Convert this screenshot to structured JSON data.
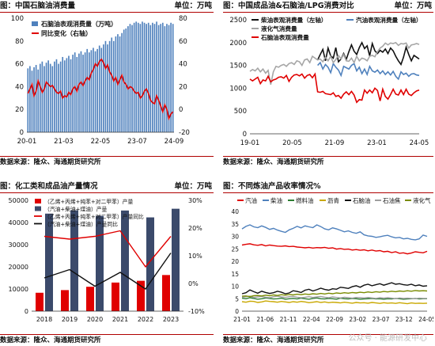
{
  "colors": {
    "title_rule": "#b00000",
    "bar_blue": "#4f81bd",
    "red": "#e00000",
    "black": "#111111",
    "gray": "#a6a6a6",
    "navy": "#3b4a6b",
    "yield_blue": "#4f81bd",
    "yield_red": "#e00000",
    "yield_green": "#2e7d32",
    "yield_yellow": "#c9a800",
    "yield_black": "#111111",
    "yield_gray": "#9e9e9e",
    "yield_olive": "#7a8b00"
  },
  "panels": [
    {
      "title": "图：中国石脑油消费量",
      "unit": "单位：万吨",
      "source": "数据来源：隆众、海通期货研究所"
    },
    {
      "title": "图：中国成品油&石脑油/LPG消费对比",
      "unit": "单位：万吨",
      "source": "数据来源：隆众、海通期货研究所"
    },
    {
      "title": "图：化工类和成品油产量情况",
      "unit": "单位：万吨",
      "source": "数据来源：隆众、海通期货研究所"
    },
    {
      "title": "图：不同炼油产品收率情况%",
      "unit": "",
      "source": "数据来源：隆众、海通期货研究所"
    }
  ],
  "watermark": "公众号 · 能源研发中心",
  "chart_data": [
    {
      "type": "bar",
      "title": "中国石脑油消费量",
      "x_ticks": [
        "20-01",
        "21-03",
        "22-05",
        "23-07",
        "24-09"
      ],
      "y_left": {
        "range": [
          0,
          100
        ],
        "ticks": [
          "0",
          "20",
          "40",
          "60",
          "80",
          "100"
        ]
      },
      "y_right": {
        "range": [
          -20,
          80
        ],
        "ticks": [
          "-20",
          "0",
          "20",
          "40",
          "60",
          "80"
        ]
      },
      "series": [
        {
          "name": "石脑油表观消费量（万吨）",
          "kind": "bar",
          "axis": "left",
          "color": "#4f81bd",
          "values": [
            56,
            58,
            54,
            57,
            59,
            55,
            60,
            62,
            58,
            61,
            63,
            60,
            58,
            62,
            64,
            60,
            62,
            66,
            63,
            65,
            67,
            64,
            68,
            70,
            66,
            69,
            71,
            68,
            70,
            73,
            70,
            72,
            74,
            71,
            73,
            76,
            74,
            77,
            80,
            77,
            80,
            83,
            80,
            84,
            86,
            84,
            87,
            90,
            91,
            93,
            95,
            94,
            96,
            97,
            96,
            95,
            97,
            96,
            95,
            96,
            94,
            96,
            95,
            97,
            94,
            95,
            96,
            93,
            95,
            94,
            96,
            95
          ]
        },
        {
          "name": "同比变化（右轴）",
          "kind": "line",
          "axis": "right",
          "color": "#e00000",
          "values": [
            14,
            18,
            22,
            12,
            16,
            25,
            20,
            15,
            18,
            24,
            22,
            20,
            21,
            18,
            15,
            14,
            16,
            10,
            12,
            11,
            15,
            13,
            18,
            20,
            16,
            22,
            24,
            21,
            25,
            28,
            26,
            32,
            35,
            40,
            38,
            42,
            44,
            41,
            36,
            39,
            33,
            30,
            25,
            28,
            22,
            26,
            30,
            24,
            22,
            18,
            20,
            19,
            16,
            14,
            15,
            10,
            12,
            16,
            18,
            14,
            8,
            6,
            5,
            12,
            8,
            3,
            -2,
            4,
            0,
            -8,
            -4,
            -2
          ]
        }
      ]
    },
    {
      "type": "line",
      "title": "中国成品油&石脑油/LPG消费对比",
      "x_ticks": [
        "19-01",
        "20-05",
        "21-09",
        "23-01",
        "24-05"
      ],
      "y_left": {
        "range": [
          0,
          2500
        ],
        "ticks": [
          "0",
          "500",
          "1000",
          "1500",
          "2000",
          "2500"
        ]
      },
      "series": [
        {
          "name": "柴油表观消费量（左轴）",
          "color": "#111111",
          "start_index": 26,
          "values": [
            1620,
            1740,
            1850,
            1600,
            1880,
            1710,
            1660,
            1890,
            1580,
            1640,
            1760,
            1630,
            1800,
            1950,
            1810,
            1740,
            1890,
            2000,
            1870,
            1930,
            1710,
            1980,
            1820,
            1760,
            1830,
            1790,
            1860,
            1760,
            1880,
            1820,
            1700,
            1600,
            1520,
            1680,
            1900,
            1740,
            1600,
            1720,
            1680,
            1640
          ]
        },
        {
          "name": "汽油表观消费量（左轴）",
          "color": "#4f81bd",
          "start_index": 26,
          "values": [
            1500,
            1560,
            1420,
            1520,
            1460,
            1340,
            1540,
            1460,
            1400,
            1280,
            1480,
            1450,
            1420,
            1500,
            1540,
            1380,
            1460,
            1320,
            1420,
            1300,
            1480,
            1380,
            1350,
            1400,
            1320,
            1380,
            1300,
            1360,
            1290,
            1370,
            1260,
            1200,
            1360,
            1300,
            1330,
            1260,
            1310,
            1320,
            1290,
            1280
          ]
        },
        {
          "name": "液化气消费量",
          "color": "#a6a6a6",
          "start_index": 0,
          "values": [
            1370,
            1410,
            1380,
            1440,
            1360,
            1420,
            1330,
            1390,
            1080,
            1360,
            1480,
            1460,
            1500,
            1520,
            1480,
            1540,
            1560,
            1520,
            1600,
            1580,
            1500,
            1620,
            1640,
            1560,
            1700,
            1660,
            1620,
            1640,
            1580,
            1680,
            1600,
            1700,
            1560,
            1630,
            1720,
            1640,
            1740,
            1600,
            1590,
            1660,
            1560,
            1700,
            1600,
            1660,
            1640,
            1600,
            1700,
            1720,
            1690,
            1800,
            1880,
            1920,
            1990,
            1950,
            1990,
            1980,
            2000,
            1940,
            1980,
            1970,
            1990,
            1880,
            1950,
            1960,
            1980,
            1960
          ]
        },
        {
          "name": "石脑油表观消费量",
          "color": "#e00000",
          "start_index": 0,
          "values": [
            1200,
            1160,
            1200,
            1240,
            1100,
            1180,
            1160,
            1260,
            1140,
            1180,
            1200,
            1240,
            1250,
            1220,
            1280,
            1150,
            1240,
            1290,
            1300,
            1270,
            1310,
            1220,
            1280,
            1300,
            1230,
            1310,
            920,
            910,
            930,
            880,
            870,
            860,
            900,
            820,
            840,
            780,
            870,
            920,
            860,
            930,
            850,
            690,
            750,
            740,
            960,
            890,
            960,
            900,
            1000,
            950,
            720,
            980,
            820,
            760,
            860,
            980,
            870,
            850,
            960,
            860,
            980,
            870,
            840,
            900,
            940,
            960
          ]
        }
      ]
    },
    {
      "type": "bar",
      "title": "化工类和成品油产量情况",
      "categories": [
        "2018",
        "2019",
        "2020",
        "2021",
        "2022",
        "2023"
      ],
      "y_left": {
        "range": [
          0,
          50000
        ],
        "ticks": [
          "0",
          "10000",
          "20000",
          "30000",
          "40000",
          "50000"
        ]
      },
      "y_right": {
        "range": [
          -10,
          30
        ],
        "ticks": [
          "-10%",
          "0%",
          "10%",
          "20%",
          "30%"
        ]
      },
      "series": [
        {
          "name": "（乙烯+丙烯+纯苯+对二甲苯）产量",
          "kind": "bar",
          "axis": "left",
          "color": "#e00000",
          "values": [
            8300,
            9500,
            11000,
            12900,
            13700,
            16300
          ]
        },
        {
          "name": "（汽油+柴油+煤油）产量",
          "kind": "bar",
          "axis": "left",
          "color": "#3b4a6b",
          "values": [
            44000,
            45500,
            43000,
            45400,
            42300,
            46200
          ]
        },
        {
          "name": "（乙烯+丙烯+纯苯+对二甲苯）产量同比",
          "kind": "line",
          "axis": "right",
          "color": "#e00000",
          "values": [
            17,
            16,
            17,
            19,
            6,
            17
          ]
        },
        {
          "name": "（汽油+柴油+煤油）产量同比",
          "kind": "line",
          "axis": "right",
          "color": "#111111",
          "values": [
            2,
            5,
            -1,
            4,
            -2,
            11
          ]
        }
      ]
    },
    {
      "type": "line",
      "title": "不同炼油产品收率情况%",
      "x_ticks": [
        "21-01",
        "21-06",
        "21-11",
        "22-04",
        "22-09",
        "23-02",
        "23-07",
        "23-12",
        "24-05"
      ],
      "y_left": {
        "range": [
          0,
          40
        ],
        "ticks": [
          "0",
          "5",
          "10",
          "15",
          "20",
          "25",
          "30",
          "35",
          "40"
        ]
      },
      "series": [
        {
          "name": "汽油",
          "color": "#e00000",
          "values": [
            26.5,
            26.8,
            27,
            26.6,
            26.4,
            26.7,
            26.2,
            26.5,
            26.3,
            26.1,
            26,
            26.2,
            25.9,
            26,
            25.7,
            25.6,
            25.4,
            25.6,
            25.3,
            25.5,
            25.4,
            25.6,
            25.2,
            25.4,
            24.9,
            25.1,
            24.8,
            24.9,
            24.5,
            24.7,
            24.4,
            24.6,
            24.2,
            24.5,
            24.1,
            24.3,
            23.8,
            24,
            23.5,
            23.8,
            23.2,
            23.4,
            23,
            23.3,
            23.8,
            23.6,
            23.4,
            24
          ]
        },
        {
          "name": "柴油",
          "color": "#4f81bd",
          "values": [
            33,
            34,
            34.6,
            33.8,
            33.5,
            34.2,
            33.6,
            32.8,
            33.2,
            32.5,
            32,
            31.6,
            32.6,
            33.2,
            34,
            33.4,
            34.2,
            33.8,
            33.5,
            34.6,
            33.9,
            33,
            32.6,
            33.4,
            33,
            32.4,
            31.8,
            32.2,
            31.6,
            31.2,
            31.8,
            30.6,
            30.2,
            30,
            29.6,
            29.8,
            30.2,
            30.4,
            29.8,
            29.4,
            29.6,
            29,
            29.2,
            28.8,
            28.6,
            29,
            30.5,
            30
          ]
        },
        {
          "name": "燃料油",
          "color": "#2e7d32",
          "values": [
            5.2,
            5,
            5.4,
            5.1,
            4.8,
            5,
            5.3,
            5.1,
            4.9,
            5,
            5.2,
            4.8,
            5,
            5.1,
            4.9,
            5.2,
            5,
            4.8,
            5.1,
            5.3,
            5,
            4.9,
            5.1,
            5,
            4.8,
            5.2,
            5,
            4.9,
            5.1,
            5,
            4.8,
            4.9,
            5,
            5.1,
            4.9,
            5,
            4.8,
            5,
            4.9,
            5.1,
            5,
            4.8,
            4.9,
            5,
            5.1,
            4.9,
            5,
            5
          ]
        },
        {
          "name": "沥青",
          "color": "#c9a800",
          "values": [
            3.8,
            3.6,
            4,
            3.9,
            3.5,
            3.7,
            4.1,
            3.9,
            3.8,
            3.6,
            3.9,
            3.7,
            3.5,
            3.8,
            3.6,
            3.9,
            3.7,
            3.4,
            3.6,
            3.8,
            3.5,
            3.7,
            3.4,
            3.6,
            3.5,
            3.3,
            3.6,
            3.4,
            3.2,
            3.5,
            3.3,
            3.4,
            3.2,
            3.5,
            3.3,
            3.1,
            3.4,
            3.2,
            3.3,
            3.1,
            3.4,
            3.2,
            3,
            3.3,
            3.1,
            3.2,
            3.1,
            3.2
          ]
        },
        {
          "name": "石脑油",
          "color": "#111111",
          "values": [
            7,
            7.4,
            8.5,
            7.8,
            7.2,
            8,
            7.5,
            7.1,
            7.4,
            8,
            7.6,
            7,
            7.3,
            8.2,
            7.9,
            7.5,
            8.4,
            8.8,
            8.1,
            8.6,
            9.2,
            8.7,
            8.4,
            9,
            8.8,
            9.6,
            9.4,
            9.1,
            9.8,
            10.2,
            9.6,
            10.4,
            10.8,
            10.2,
            10.6,
            11,
            10.4,
            10.9,
            11.4,
            10.8,
            11,
            10.6,
            10.4,
            10.8,
            10.2,
            10.5,
            10,
            10.2
          ]
        },
        {
          "name": "石油焦",
          "color": "#9e9e9e",
          "values": [
            5.6,
            5.8,
            6,
            5.5,
            5.7,
            5.9,
            5.6,
            5.4,
            5.8,
            6,
            5.7,
            5.5,
            5.8,
            5.9,
            5.6,
            5.4,
            5.6,
            5.8,
            5.5,
            5.7,
            5.9,
            5.6,
            5.4,
            5.7,
            5.5,
            5.3,
            5.6,
            5.4,
            5.2,
            5.5,
            5.4,
            5.3,
            5.5,
            5.3,
            5.1,
            5.4,
            5.2,
            5.4,
            5.2,
            5,
            5.3,
            5.1,
            5.2,
            5.1,
            5,
            5.2,
            5.1,
            5.1
          ]
        },
        {
          "name": "液化气",
          "color": "#7a8b00",
          "values": [
            6,
            6.1,
            5.8,
            6.2,
            6.3,
            6.1,
            6.4,
            6.2,
            6.5,
            6.3,
            6.6,
            6.4,
            6.7,
            6.5,
            6.8,
            6.6,
            6.9,
            6.7,
            7,
            6.8,
            7.1,
            6.9,
            7.2,
            7,
            7.3,
            7.1,
            7.4,
            7.2,
            7.5,
            7.3,
            7.6,
            7.4,
            7.7,
            7.5,
            7.8,
            7.6,
            7.9,
            7.7,
            8,
            7.8,
            8.1,
            7.9,
            8.2,
            8,
            8.3,
            8.1,
            8.2,
            8.1
          ]
        }
      ]
    }
  ]
}
